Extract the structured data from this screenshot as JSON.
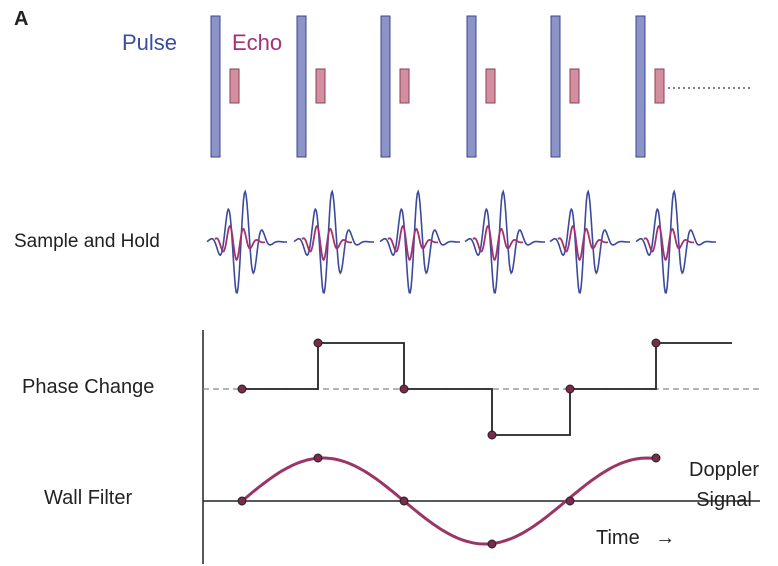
{
  "panel_letter": "A",
  "labels": {
    "pulse": "Pulse",
    "echo": "Echo",
    "sample_and_hold": "Sample and Hold",
    "phase_change": "Phase Change",
    "wall_filter": "Wall Filter",
    "doppler_line1": "Doppler",
    "doppler_line2": "Signal",
    "time": "Time",
    "time_arrow": "→"
  },
  "colors": {
    "pulse": "#8b93c7",
    "pulse_stroke": "#3a4591",
    "echo": "#d28fa0",
    "echo_stroke": "#8e3d56",
    "wave_blue": "#3c4a9c",
    "wave_magenta": "#a3336e",
    "step_line": "#222222",
    "sine": "#9b3566",
    "pulse_label": "#3c4da1",
    "echo_label": "#a63275"
  },
  "pulse_count": 6,
  "phase_change_levels": [
    0,
    1,
    0,
    -1,
    0,
    1
  ],
  "wall_filter_values": [
    0,
    1,
    0,
    -1,
    0,
    1
  ]
}
